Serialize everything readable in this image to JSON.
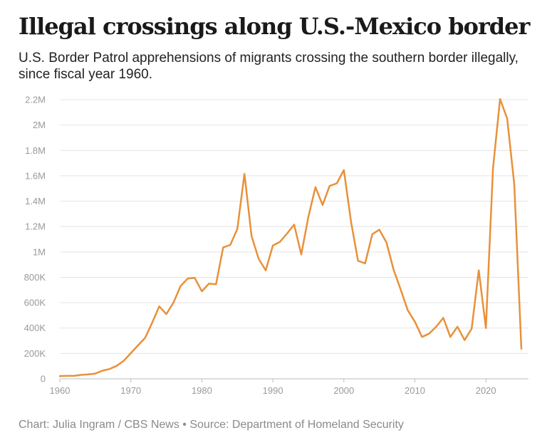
{
  "header": {
    "title": "Illegal crossings along U.S.-Mexico border",
    "subtitle": "U.S. Border Patrol apprehensions of migrants crossing the southern border illegally, since fiscal year 1960."
  },
  "footer": {
    "credit": "Chart: Julia Ingram / CBS News • Source: Department of Homeland Security"
  },
  "chart_data": {
    "type": "line",
    "title": "Illegal crossings along U.S.-Mexico border",
    "subtitle": "U.S. Border Patrol apprehensions of migrants crossing the southern border illegally, since fiscal year 1960.",
    "xlabel": "",
    "ylabel": "",
    "xlim": [
      1960,
      2026
    ],
    "ylim": [
      0,
      2200000
    ],
    "grid": true,
    "line_color": "#e8913a",
    "x_ticks": [
      {
        "value": 1960,
        "label": "1960"
      },
      {
        "value": 1970,
        "label": "1970"
      },
      {
        "value": 1980,
        "label": "1980"
      },
      {
        "value": 1990,
        "label": "1990"
      },
      {
        "value": 2000,
        "label": "2000"
      },
      {
        "value": 2010,
        "label": "2010"
      },
      {
        "value": 2020,
        "label": "2020"
      }
    ],
    "y_ticks": [
      {
        "value": 0,
        "label": "0"
      },
      {
        "value": 200000,
        "label": "200K"
      },
      {
        "value": 400000,
        "label": "400K"
      },
      {
        "value": 600000,
        "label": "600K"
      },
      {
        "value": 800000,
        "label": "800K"
      },
      {
        "value": 1000000,
        "label": "1M"
      },
      {
        "value": 1200000,
        "label": "1.2M"
      },
      {
        "value": 1400000,
        "label": "1.4M"
      },
      {
        "value": 1600000,
        "label": "1.6M"
      },
      {
        "value": 1800000,
        "label": "1.8M"
      },
      {
        "value": 2000000,
        "label": "2M"
      },
      {
        "value": 2200000,
        "label": "2.2M"
      }
    ],
    "series": [
      {
        "x": [
          1960,
          1961,
          1962,
          1963,
          1964,
          1965,
          1966,
          1967,
          1968,
          1969,
          1970,
          1971,
          1972,
          1973,
          1974,
          1975,
          1976,
          1977,
          1978,
          1979,
          1980,
          1981,
          1982,
          1983,
          1984,
          1985,
          1986,
          1987,
          1988,
          1989,
          1990,
          1991,
          1992,
          1993,
          1994,
          1995,
          1996,
          1997,
          1998,
          1999,
          2000,
          2001,
          2002,
          2003,
          2004,
          2005,
          2006,
          2007,
          2008,
          2009,
          2010,
          2011,
          2012,
          2013,
          2014,
          2015,
          2016,
          2017,
          2018,
          2019,
          2020,
          2021,
          2022,
          2023,
          2024,
          2025
        ],
        "values": [
          21000,
          23000,
          23000,
          31000,
          34000,
          41000,
          64000,
          77000,
          102000,
          142000,
          202000,
          263000,
          321000,
          441000,
          571000,
          510000,
          600000,
          730000,
          790000,
          795000,
          690000,
          750000,
          745000,
          1035000,
          1055000,
          1180000,
          1615000,
          1125000,
          945000,
          855000,
          1050000,
          1080000,
          1145000,
          1215000,
          980000,
          1275000,
          1510000,
          1370000,
          1520000,
          1540000,
          1645000,
          1240000,
          930000,
          910000,
          1140000,
          1175000,
          1075000,
          860000,
          705000,
          540000,
          450000,
          330000,
          355000,
          410000,
          480000,
          330000,
          410000,
          305000,
          395000,
          855000,
          400000,
          1660000,
          2205000,
          2050000,
          1530000,
          237000
        ]
      }
    ]
  }
}
